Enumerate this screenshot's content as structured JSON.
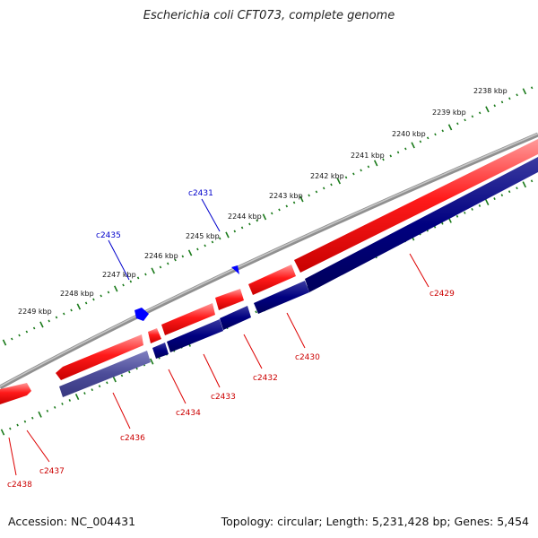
{
  "title": "Escherichia coli CFT073, complete genome",
  "footer": {
    "accession": "Accession: NC_004431",
    "topology": "Topology: circular; Length: 5,231,428 bp; Genes: 5,454"
  },
  "colors": {
    "backbone": "#808080",
    "forward_gene": "#ff0000",
    "reverse_gene": "#000080",
    "reverse_gene_light": "#4c4c99",
    "small_marker": "#0000ff",
    "tick": "#1a7a1a",
    "label_forward": "#cc0000",
    "label_marker": "#0000cc"
  },
  "ruler": {
    "unit": "kbp",
    "labels": [
      "2238 kbp",
      "2239 kbp",
      "2240 kbp",
      "2241 kbp",
      "2242 kbp",
      "2243 kbp",
      "2244 kbp",
      "2245 kbp",
      "2246 kbp",
      "2247 kbp",
      "2248 kbp",
      "2249 kbp"
    ]
  },
  "genes": [
    {
      "name": "c2429",
      "strand": "reverse",
      "track": "inner"
    },
    {
      "name": "c2430",
      "strand": "reverse",
      "track": "inner"
    },
    {
      "name": "c2432",
      "strand": "reverse",
      "track": "inner"
    },
    {
      "name": "c2433",
      "strand": "reverse",
      "track": "inner"
    },
    {
      "name": "c2434",
      "strand": "reverse",
      "track": "inner"
    },
    {
      "name": "c2436",
      "strand": "reverse",
      "track": "inner"
    },
    {
      "name": "c2437",
      "strand": "forward",
      "track": "outer"
    },
    {
      "name": "c2438",
      "strand": "forward",
      "track": "outer"
    },
    {
      "name": "c2431",
      "strand": "marker",
      "track": "outer"
    },
    {
      "name": "c2435",
      "strand": "marker",
      "track": "outer"
    }
  ]
}
